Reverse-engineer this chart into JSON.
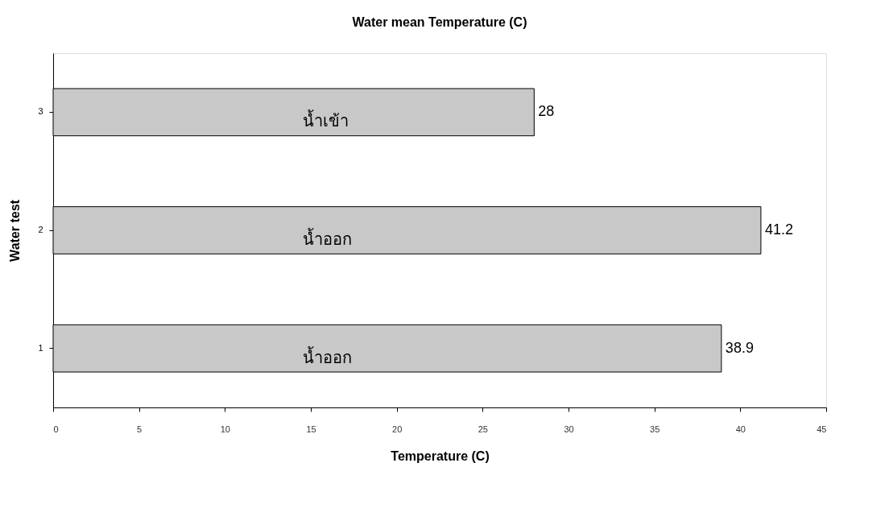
{
  "chart_data": {
    "type": "bar",
    "orientation": "horizontal",
    "title": "Water mean Temperature (C)",
    "xlabel": "Temperature (C)",
    "ylabel": "Water test",
    "categories": [
      "3",
      "2",
      "1"
    ],
    "values": [
      28,
      41.2,
      38.9
    ],
    "color": "#c8c8c8",
    "xlim": [
      0,
      45
    ],
    "xticks": [
      0,
      5,
      10,
      15,
      20,
      25,
      30,
      35,
      40,
      45
    ],
    "data_labels": true,
    "grid": false,
    "legend": false,
    "annotations": [
      "น้ำเข้า",
      "น้ำออก",
      "น้ำออก"
    ]
  }
}
